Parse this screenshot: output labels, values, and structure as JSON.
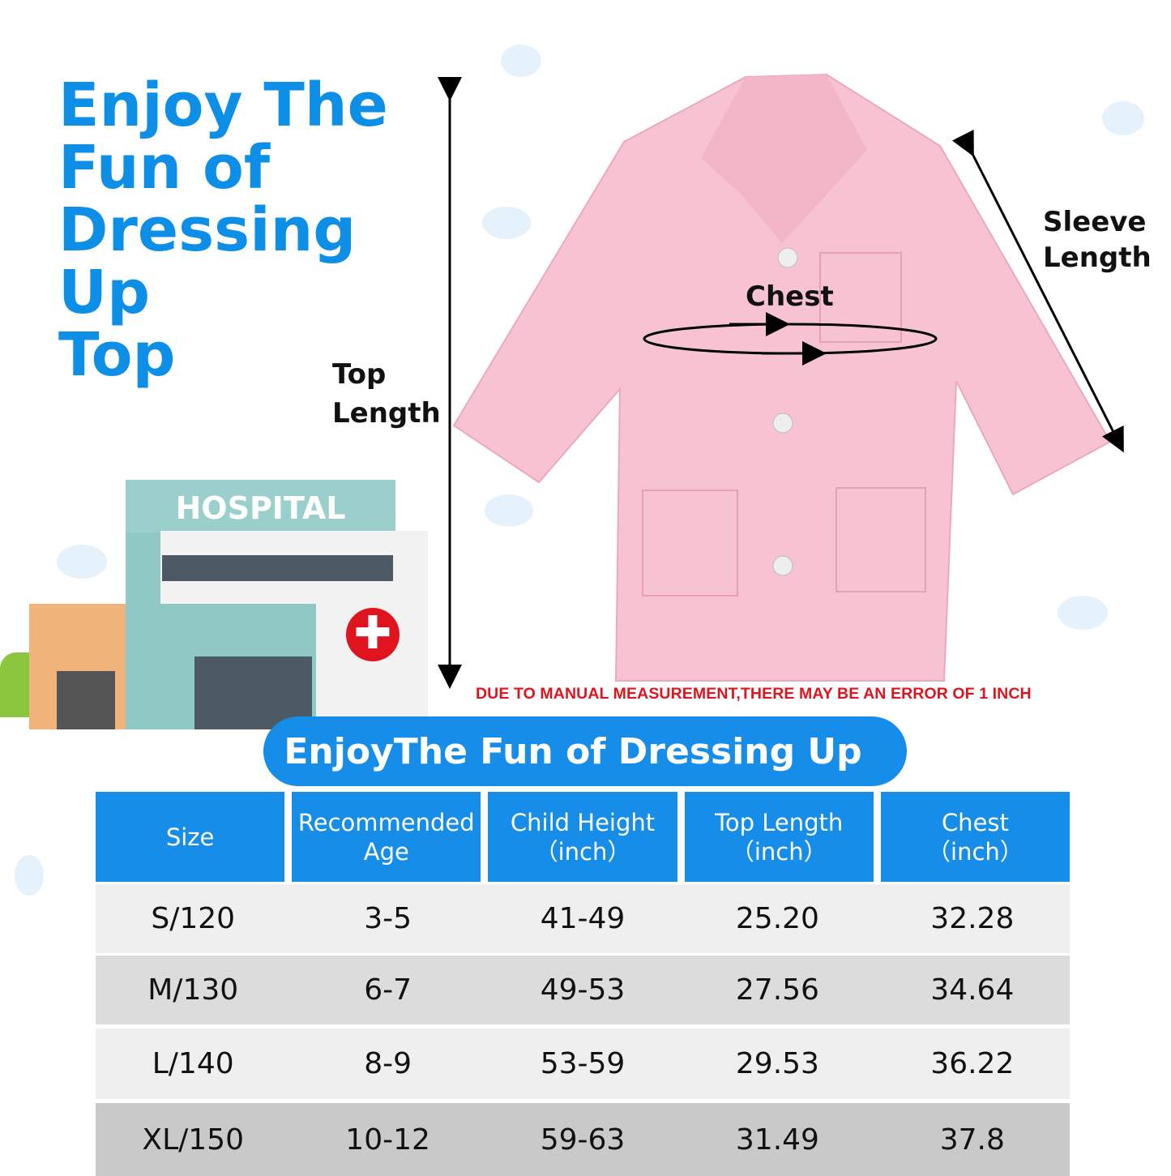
{
  "headline": [
    "Enjoy The",
    "Fun of",
    "Dressing",
    "Up",
    "Top"
  ],
  "labels": {
    "top_length": [
      "Top",
      "Length"
    ],
    "chest": "Chest",
    "sleeve_length": [
      "Sleeve",
      "Length"
    ]
  },
  "hospital_sign": "HOSPITAL",
  "warning": "DUE TO MANUAL MEASUREMENT,THERE MAY BE AN ERROR OF 1 INCH",
  "banner": "EnjoyThe Fun of Dressing Up",
  "colors": {
    "brand_blue": "#168ee9",
    "coat_pink": "#f7c3d3",
    "warning_red": "#e0141e"
  },
  "table": {
    "headers": [
      [
        "Size"
      ],
      [
        "Recommended",
        "Age"
      ],
      [
        "Child Height",
        "（inch）"
      ],
      [
        "Top Length",
        "（inch）"
      ],
      [
        "Chest",
        "（inch）"
      ]
    ],
    "rows": [
      [
        "S/120",
        "3-5",
        "41-49",
        "25.20",
        "32.28"
      ],
      [
        "M/130",
        "6-7",
        "49-53",
        "27.56",
        "34.64"
      ],
      [
        "L/140",
        "8-9",
        "53-59",
        "29.53",
        "36.22"
      ],
      [
        "XL/150",
        "10-12",
        "59-63",
        "31.49",
        "37.8"
      ]
    ]
  }
}
